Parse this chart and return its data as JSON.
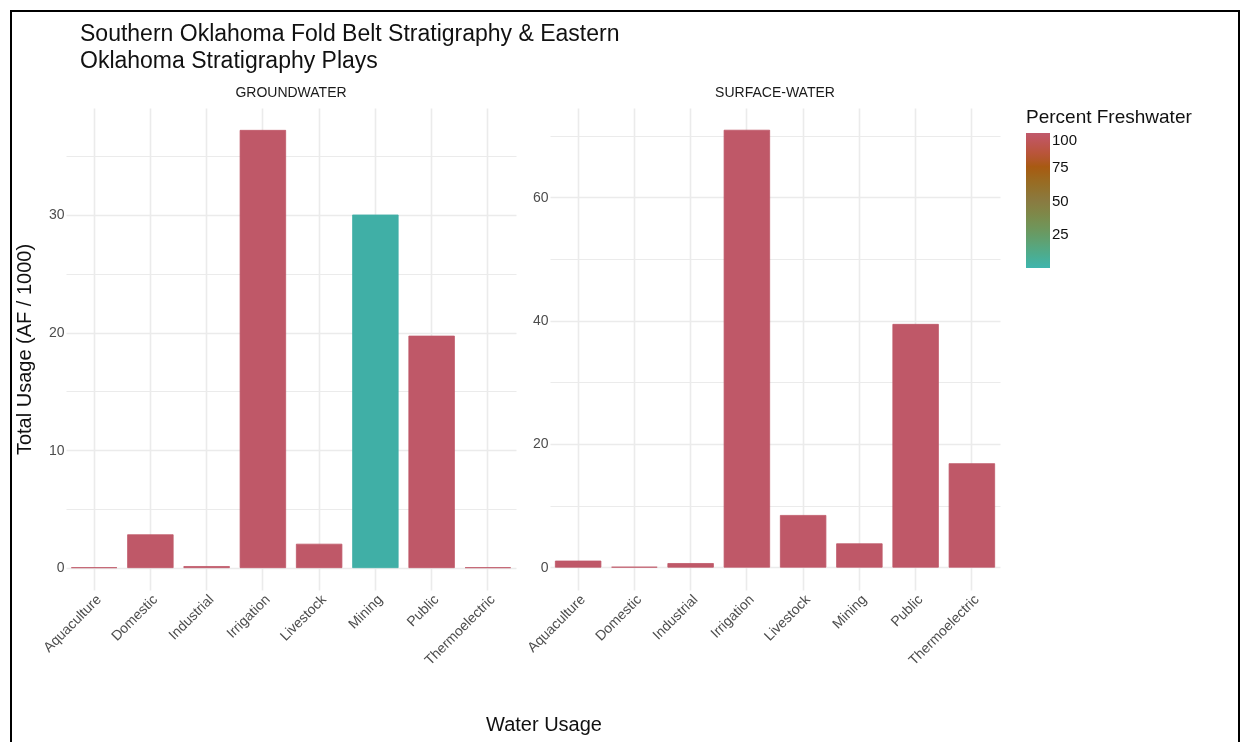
{
  "chart_data": [
    {
      "type": "bar",
      "title": "Southern Oklahoma Fold Belt Stratigraphy & Eastern Oklahoma Stratigraphy Plays",
      "subtitle": "GROUNDWATER",
      "xlabel": "Water Usage",
      "ylabel": "Total Usage (AF / 1000)",
      "categories": [
        "Aquaculture",
        "Domestic",
        "Industrial",
        "Irrigation",
        "Livestock",
        "Mining",
        "Public",
        "Thermoelectric"
      ],
      "values": [
        0,
        2.8,
        0.1,
        37.2,
        2.0,
        30.0,
        19.7,
        0
      ],
      "colors": [
        "#bf5868",
        "#bf5868",
        "#bf5868",
        "#bf5868",
        "#bf5868",
        "#40afa6",
        "#bf5868",
        "#bf5868"
      ],
      "ylim": [
        -1.9,
        39.1
      ],
      "yticks": [
        0,
        {
          "value": 5,
          "label": null
        },
        10,
        {
          "value": 15,
          "label": null
        },
        20,
        {
          "value": 25,
          "label": null
        },
        30,
        {
          "value": 35,
          "label": null
        }
      ],
      "grid": true
    },
    {
      "type": "bar",
      "subtitle": "SURFACE-WATER",
      "clabel": "Percent Freshwater",
      "clim": [
        0,
        100
      ],
      "cticks": [
        25,
        50,
        75,
        100
      ],
      "categories": [
        "Aquaculture",
        "Domestic",
        "Industrial",
        "Irrigation",
        "Livestock",
        "Mining",
        "Public",
        "Thermoelectric"
      ],
      "values": [
        1.0,
        0,
        0.6,
        70.9,
        8.4,
        3.8,
        39.4,
        16.8
      ],
      "colors": [
        "#bf5868",
        "#bf5868",
        "#bf5868",
        "#bf5868",
        "#bf5868",
        "#bf5868",
        "#bf5868",
        "#bf5868"
      ],
      "ylim": [
        -3.7,
        74.5
      ],
      "yticks": [
        0,
        {
          "value": 10,
          "label": null
        },
        20,
        {
          "value": 30,
          "label": null
        },
        40,
        {
          "value": 50,
          "label": null
        },
        60,
        {
          "value": 70,
          "label": null
        }
      ],
      "grid": true
    }
  ]
}
